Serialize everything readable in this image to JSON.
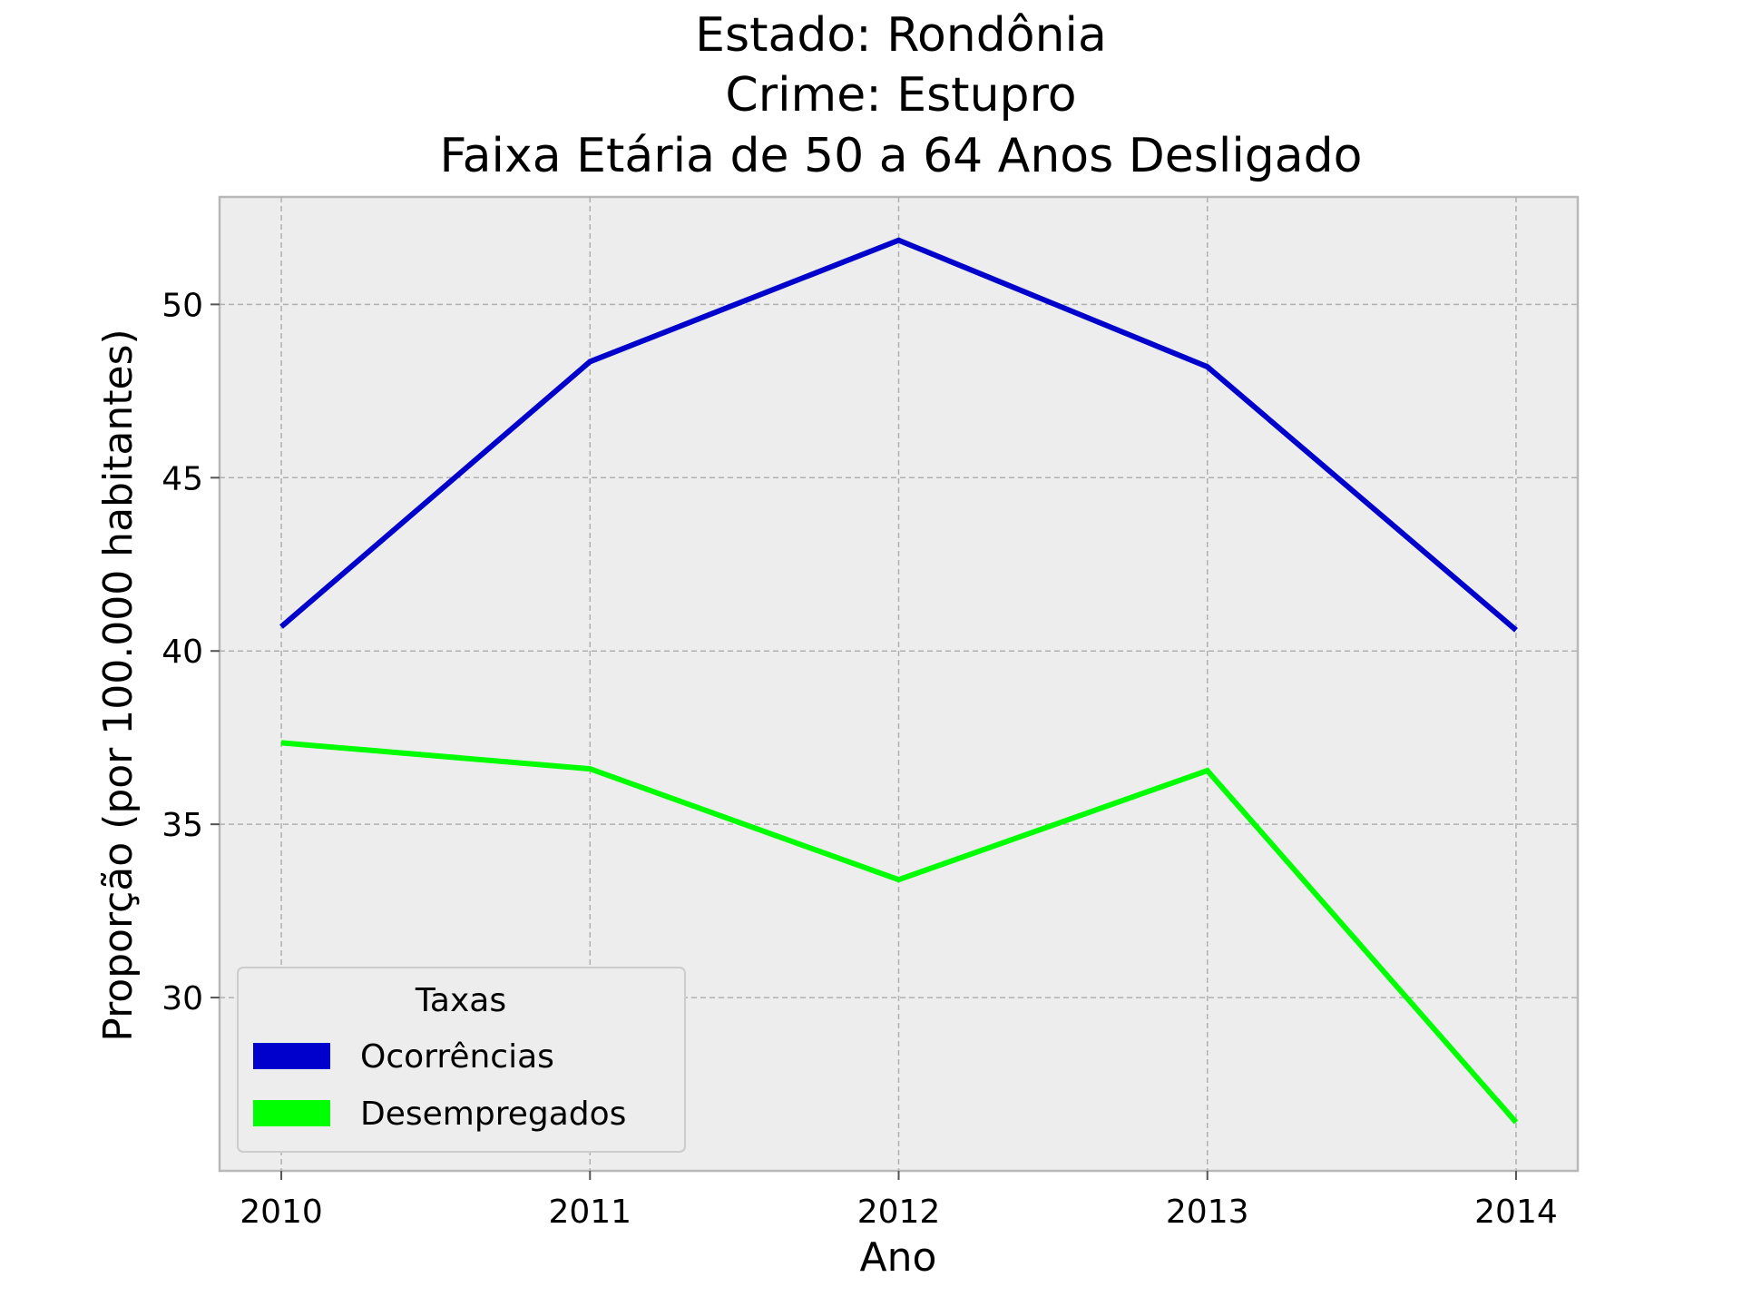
{
  "chart_data": {
    "type": "line",
    "title_lines": [
      "Estado: Rondônia",
      "Crime: Estupro",
      "Faixa Etária de 50 a 64 Anos   Desligado"
    ],
    "xlabel": "Ano",
    "ylabel": "Proporção (por 100.000 habitantes)",
    "x": [
      2010,
      2011,
      2012,
      2013,
      2014
    ],
    "x_tick_labels": [
      "2010",
      "2011",
      "2012",
      "2013",
      "2014"
    ],
    "y_ticks": [
      30,
      35,
      40,
      45,
      50
    ],
    "y_tick_labels": [
      "30",
      "35",
      "40",
      "45",
      "50"
    ],
    "xlim": [
      2009.8,
      2014.2
    ],
    "ylim": [
      25.0,
      53.1
    ],
    "grid": true,
    "legend": {
      "title": "Taxas",
      "placement": "lower-left"
    },
    "series": [
      {
        "name": "Ocorrências",
        "color": "#0000cc",
        "values": [
          40.7,
          48.35,
          51.85,
          48.2,
          40.6
        ]
      },
      {
        "name": "Desempregados",
        "color": "#00ff00",
        "values": [
          37.35,
          36.6,
          33.4,
          36.55,
          26.4
        ]
      }
    ]
  }
}
